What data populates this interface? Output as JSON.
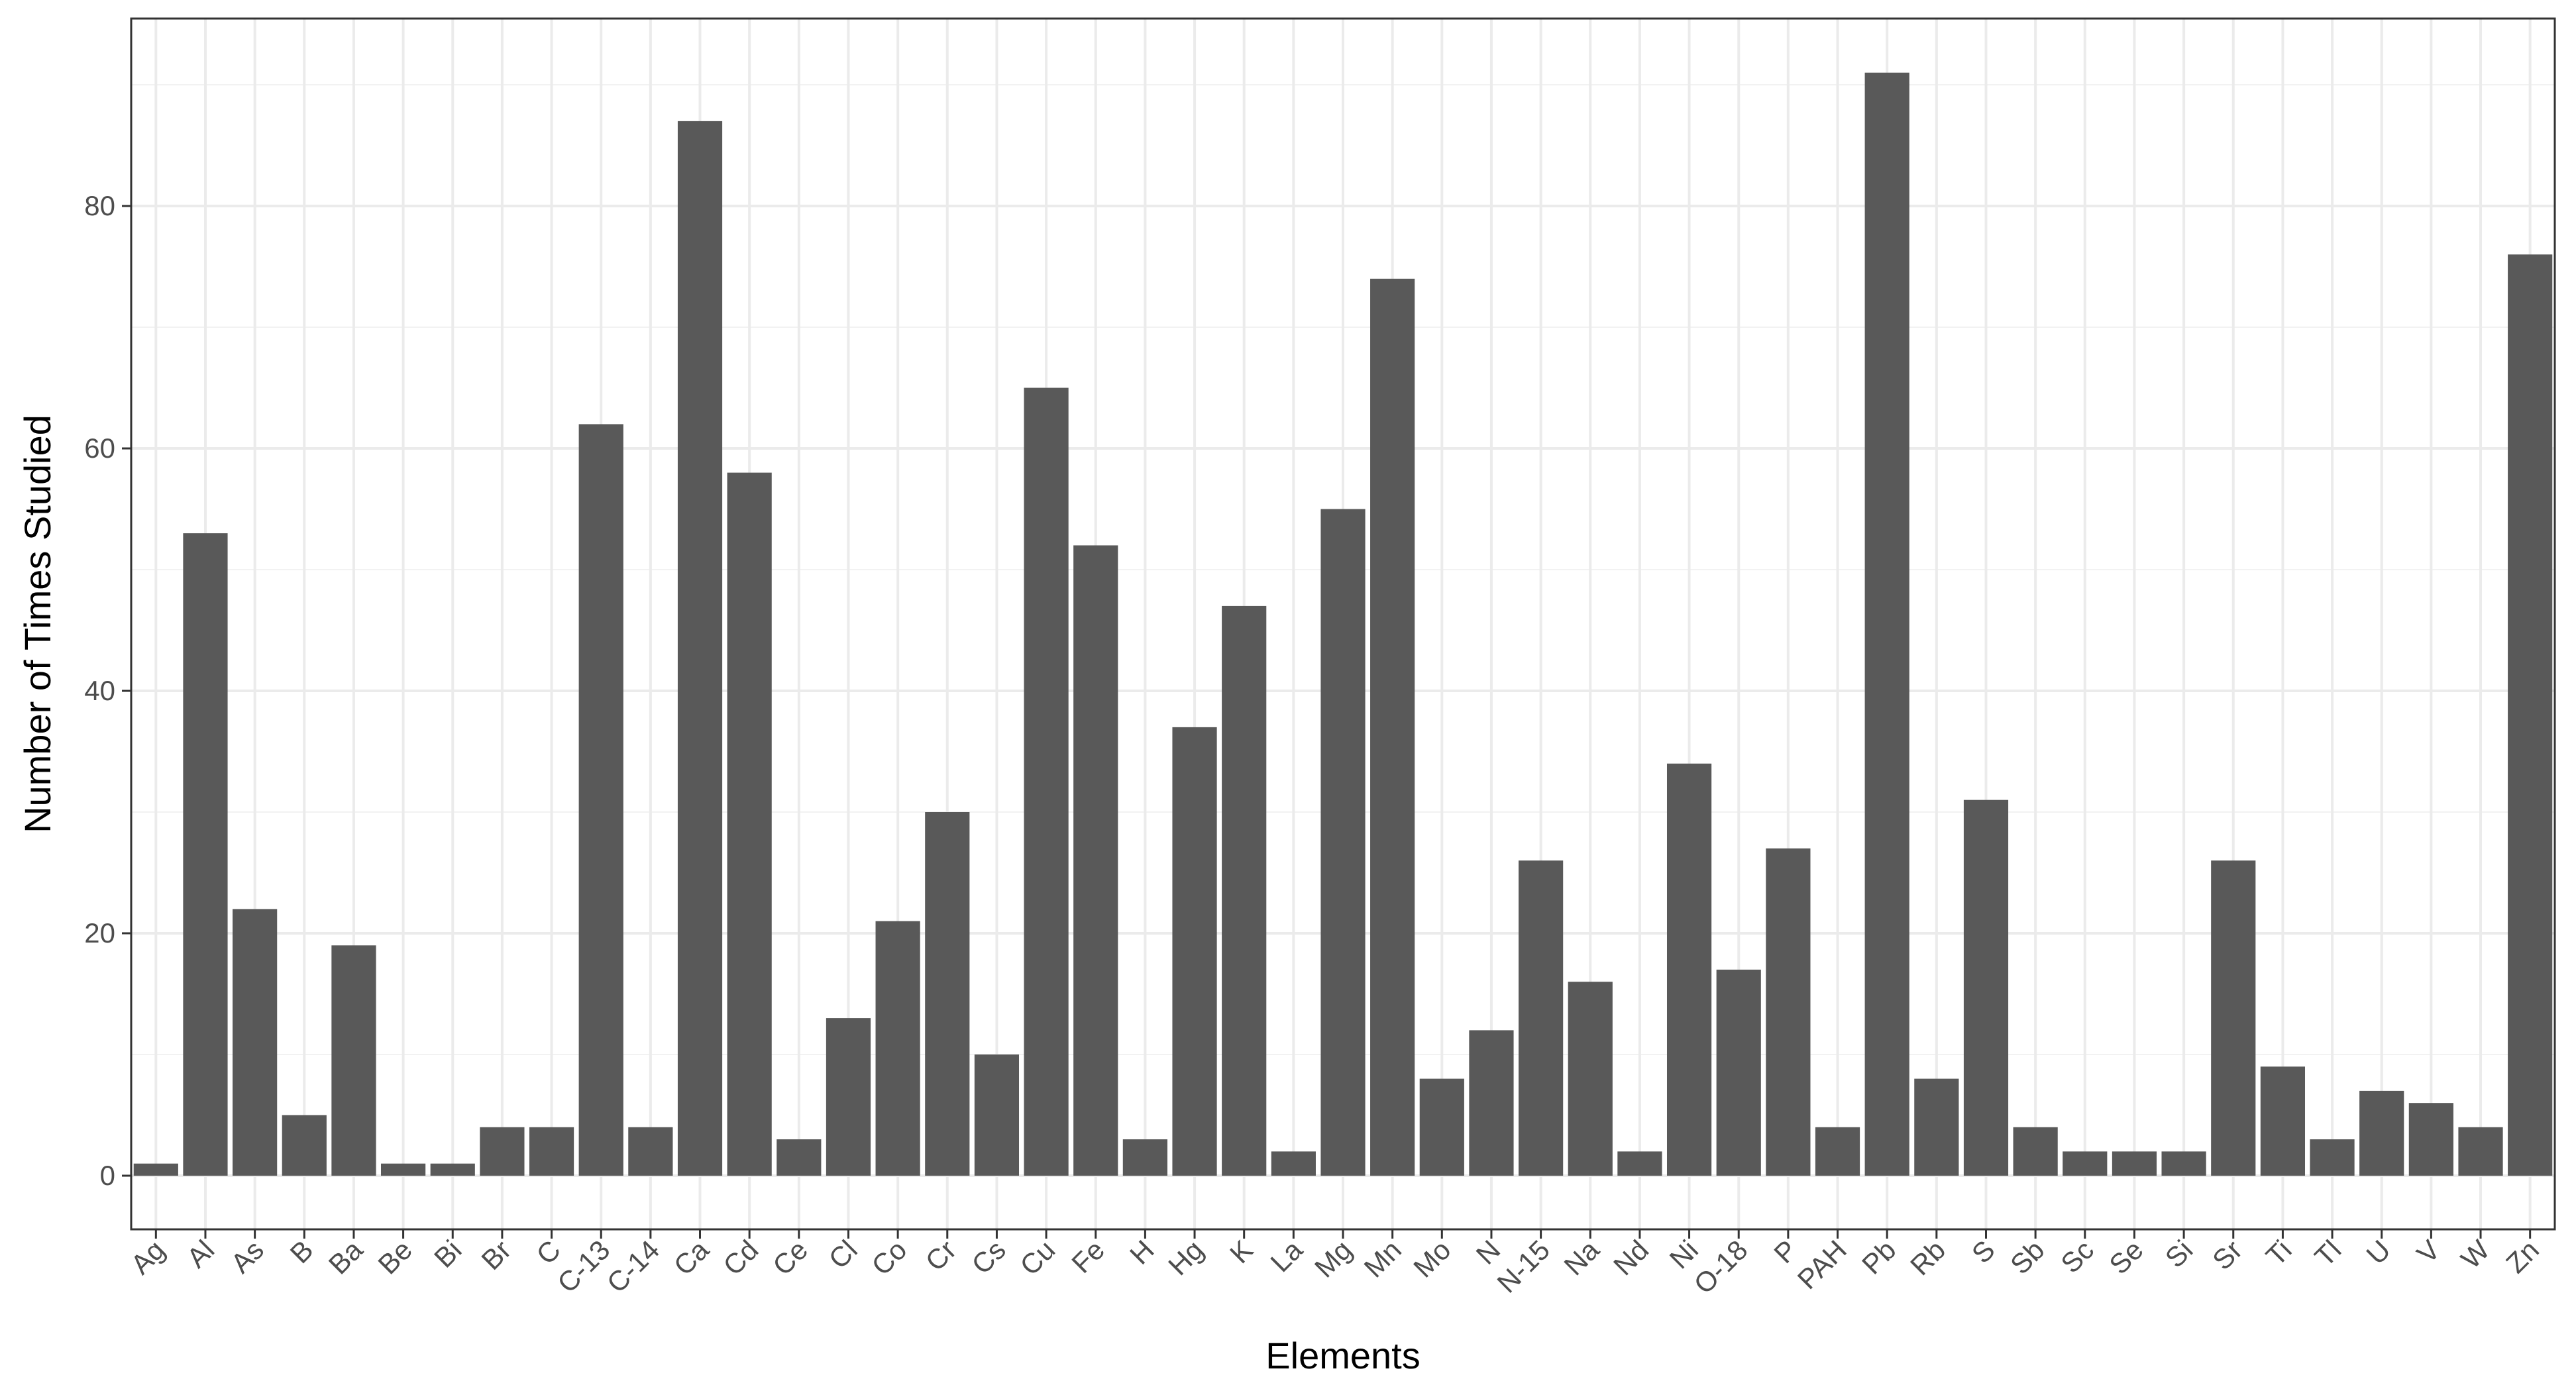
{
  "chart_data": {
    "type": "bar",
    "title": "",
    "xlabel": "Elements",
    "ylabel": "Number of Times Studied",
    "ylim": [
      0,
      92
    ],
    "yticks": [
      0,
      20,
      40,
      60,
      80
    ],
    "grid": true,
    "legend": "none",
    "bar_color": "#595959",
    "grid_color": "#ebebeb",
    "categories": [
      "Ag",
      "Al",
      "As",
      "B",
      "Ba",
      "Be",
      "Bi",
      "Br",
      "C",
      "C-13",
      "C-14",
      "Ca",
      "Cd",
      "Ce",
      "Cl",
      "Co",
      "Cr",
      "Cs",
      "Cu",
      "Fe",
      "H",
      "Hg",
      "K",
      "La",
      "Mg",
      "Mn",
      "Mo",
      "N",
      "N-15",
      "Na",
      "Nd",
      "Ni",
      "O-18",
      "P",
      "PAH",
      "Pb",
      "Rb",
      "S",
      "Sb",
      "Sc",
      "Se",
      "Si",
      "Sr",
      "Ti",
      "Tl",
      "U",
      "V",
      "W",
      "Zn"
    ],
    "values": [
      1,
      53,
      22,
      5,
      19,
      1,
      1,
      4,
      4,
      62,
      4,
      87,
      58,
      3,
      13,
      21,
      30,
      10,
      65,
      52,
      3,
      37,
      47,
      2,
      55,
      74,
      8,
      12,
      26,
      16,
      2,
      34,
      17,
      27,
      4,
      91,
      8,
      31,
      4,
      2,
      2,
      2,
      26,
      9,
      3,
      7,
      6,
      4,
      76
    ]
  }
}
